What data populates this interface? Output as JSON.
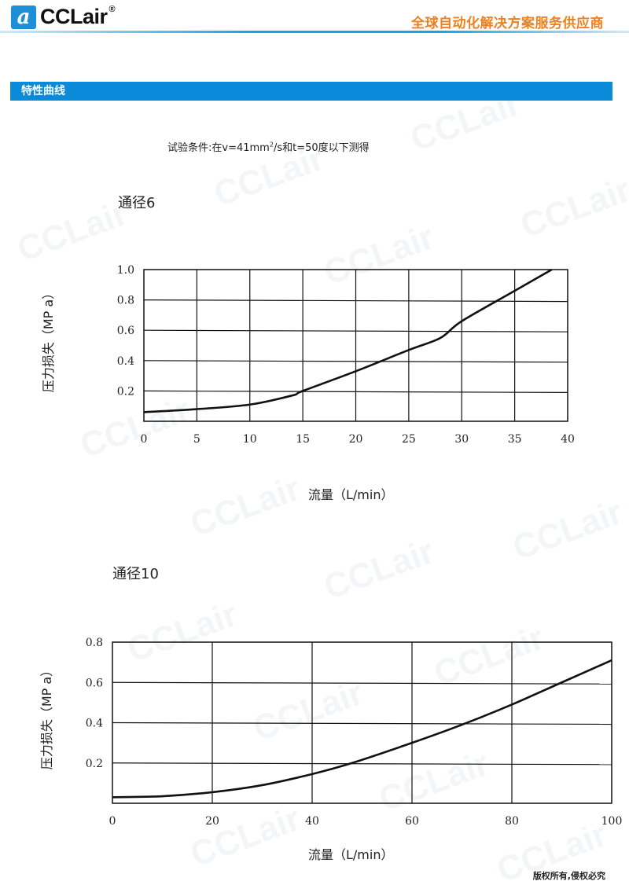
{
  "header": {
    "logo_mark": "a",
    "logo_text": "CCLair",
    "logo_reg": "®",
    "slogan": "全球自动化解决方案服务供应商"
  },
  "section": {
    "title": "特性曲线"
  },
  "condition": {
    "prefix": "试验条件:在v=41mm",
    "sup": "2",
    "suffix": "/s和t=50度以下测得"
  },
  "watermark": "CCLair",
  "colors": {
    "brand_blue": "#0a8ad8",
    "slogan_orange": "#f07f1e",
    "curve": "#111111"
  },
  "footer": {
    "copyright": "版权所有,侵权必究"
  },
  "chart_data": [
    {
      "type": "line",
      "title": "通径6",
      "xlabel": "流量（L/min）",
      "ylabel": "压力损失（MP a）",
      "xlim": [
        0,
        40
      ],
      "ylim": [
        0,
        1.0
      ],
      "grid": true,
      "xticks": [
        "0",
        "5",
        "10",
        "15",
        "20",
        "25",
        "30",
        "35",
        "40"
      ],
      "yticks": [
        "0.2",
        "0.4",
        "0.6",
        "0.8",
        "1.0"
      ],
      "x": [
        0,
        5,
        10,
        14,
        15,
        20,
        25,
        28,
        30,
        35,
        38.5
      ],
      "y": [
        0.06,
        0.08,
        0.11,
        0.17,
        0.2,
        0.33,
        0.47,
        0.55,
        0.66,
        0.86,
        1.0
      ]
    },
    {
      "type": "line",
      "title": "通径10",
      "xlabel": "流量（L/min）",
      "ylabel": "压力损失（MP a）",
      "xlim": [
        0,
        100
      ],
      "ylim": [
        0,
        0.8
      ],
      "grid": true,
      "xticks": [
        "0",
        "20",
        "40",
        "60",
        "80",
        "100"
      ],
      "yticks": [
        "0.2",
        "0.4",
        "0.6",
        "0.8"
      ],
      "x": [
        0,
        10,
        20,
        30,
        40,
        48,
        60,
        70,
        80,
        90,
        100
      ],
      "y": [
        0.03,
        0.035,
        0.055,
        0.09,
        0.145,
        0.2,
        0.3,
        0.39,
        0.49,
        0.6,
        0.71
      ]
    }
  ]
}
